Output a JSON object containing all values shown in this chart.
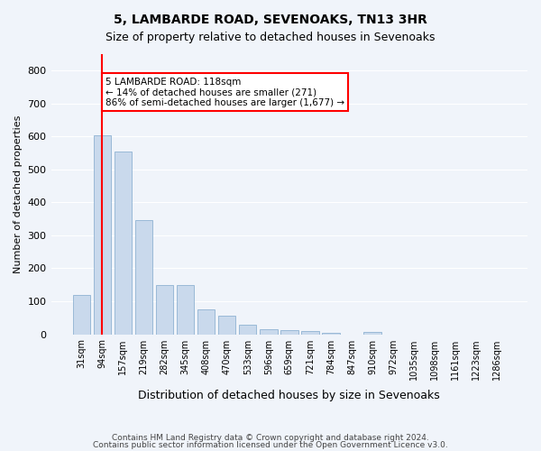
{
  "title": "5, LAMBARDE ROAD, SEVENOAKS, TN13 3HR",
  "subtitle": "Size of property relative to detached houses in Sevenoaks",
  "xlabel": "Distribution of detached houses by size in Sevenoaks",
  "ylabel": "Number of detached properties",
  "bar_color": "#c9d9ec",
  "bar_edge_color": "#7fa8cc",
  "categories": [
    "31sqm",
    "94sqm",
    "157sqm",
    "219sqm",
    "282sqm",
    "345sqm",
    "408sqm",
    "470sqm",
    "533sqm",
    "596sqm",
    "659sqm",
    "721sqm",
    "784sqm",
    "847sqm",
    "910sqm",
    "972sqm",
    "1035sqm",
    "1098sqm",
    "1161sqm",
    "1223sqm",
    "1286sqm"
  ],
  "values": [
    120,
    605,
    555,
    345,
    148,
    148,
    75,
    55,
    30,
    15,
    13,
    10,
    5,
    0,
    7,
    0,
    0,
    0,
    0,
    0,
    0
  ],
  "red_line_x": 1,
  "annotation_text": "5 LAMBARDE ROAD: 118sqm\n← 14% of detached houses are smaller (271)\n86% of semi-detached houses are larger (1,677) →",
  "annotation_box_color": "white",
  "annotation_box_edge_color": "red",
  "red_line_color": "red",
  "ylim": [
    0,
    850
  ],
  "yticks": [
    0,
    100,
    200,
    300,
    400,
    500,
    600,
    700,
    800
  ],
  "footer1": "Contains HM Land Registry data © Crown copyright and database right 2024.",
  "footer2": "Contains public sector information licensed under the Open Government Licence v3.0.",
  "background_color": "#f0f4fa",
  "grid_color": "white"
}
